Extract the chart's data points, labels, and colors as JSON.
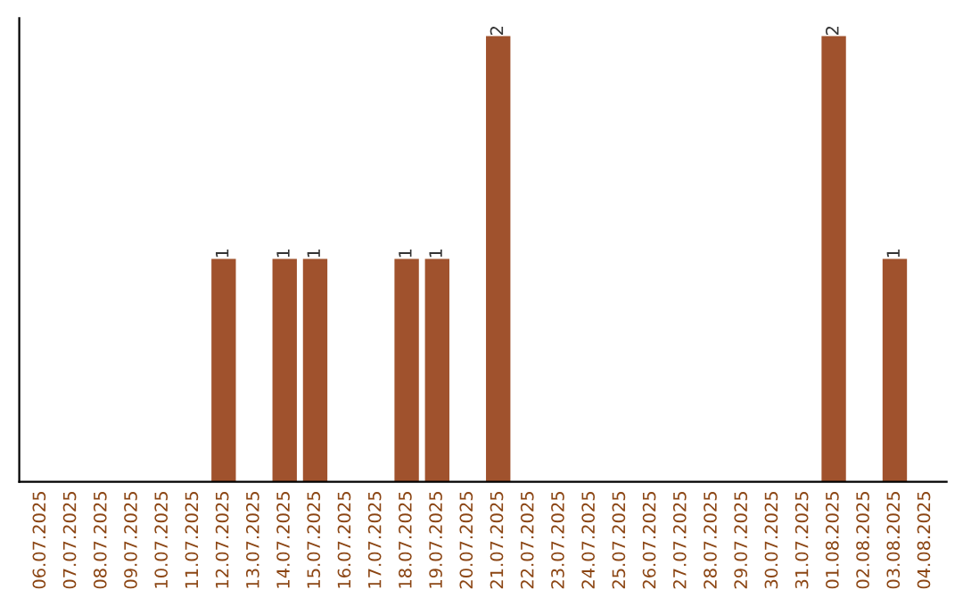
{
  "chart_data": {
    "type": "bar",
    "categories": [
      "06.07.2025",
      "07.07.2025",
      "08.07.2025",
      "09.07.2025",
      "10.07.2025",
      "11.07.2025",
      "12.07.2025",
      "13.07.2025",
      "14.07.2025",
      "15.07.2025",
      "16.07.2025",
      "17.07.2025",
      "18.07.2025",
      "19.07.2025",
      "20.07.2025",
      "21.07.2025",
      "22.07.2025",
      "23.07.2025",
      "24.07.2025",
      "25.07.2025",
      "26.07.2025",
      "27.07.2025",
      "28.07.2025",
      "29.07.2025",
      "30.07.2025",
      "31.07.2025",
      "01.08.2025",
      "02.08.2025",
      "03.08.2025",
      "04.08.2025"
    ],
    "values": [
      0,
      0,
      0,
      0,
      0,
      0,
      1,
      0,
      1,
      1,
      0,
      0,
      1,
      1,
      0,
      2,
      0,
      0,
      0,
      0,
      0,
      0,
      0,
      0,
      0,
      0,
      2,
      0,
      1,
      0
    ],
    "value_labels": [
      null,
      null,
      null,
      null,
      null,
      null,
      "1",
      null,
      "1",
      "1",
      null,
      null,
      "1",
      "1",
      null,
      "2",
      null,
      null,
      null,
      null,
      null,
      null,
      null,
      null,
      null,
      null,
      "2",
      null,
      "1",
      null
    ],
    "color": "#a0522d",
    "tick_labels": "x",
    "grid": false
  }
}
